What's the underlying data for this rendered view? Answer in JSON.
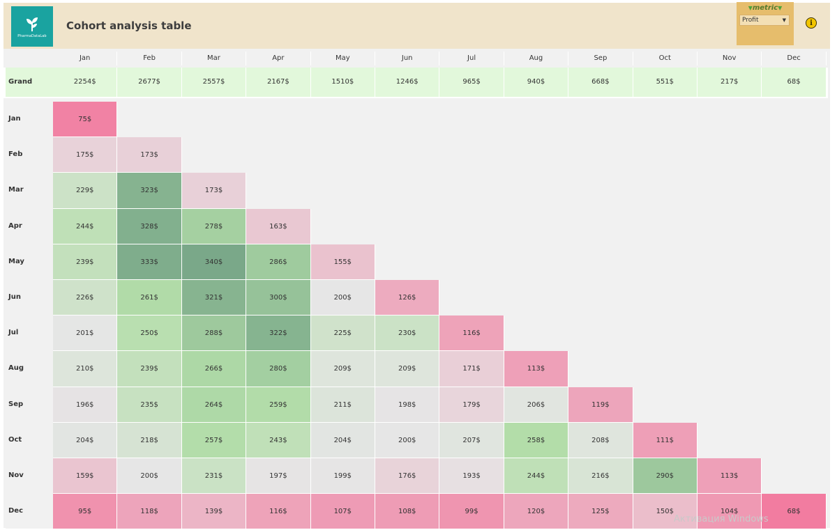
{
  "header": {
    "title": "Cohort analysis table",
    "logo_text": "PharmaDataLab"
  },
  "metric": {
    "label": "metric",
    "selected": "Profit"
  },
  "months": [
    "Jan",
    "Feb",
    "Mar",
    "Apr",
    "May",
    "Jun",
    "Jul",
    "Aug",
    "Sep",
    "Oct",
    "Nov",
    "Dec"
  ],
  "grand_total": {
    "label": "Grand Total",
    "values": [
      "2254$",
      "2677$",
      "2557$",
      "2167$",
      "1510$",
      "1246$",
      "965$",
      "940$",
      "668$",
      "551$",
      "217$",
      "68$"
    ]
  },
  "cohorts": [
    {
      "label": "Jan",
      "values": [
        75
      ]
    },
    {
      "label": "Feb",
      "values": [
        175,
        173
      ]
    },
    {
      "label": "Mar",
      "values": [
        229,
        323,
        173
      ]
    },
    {
      "label": "Apr",
      "values": [
        244,
        328,
        278,
        163
      ]
    },
    {
      "label": "May",
      "values": [
        239,
        333,
        340,
        286,
        155
      ]
    },
    {
      "label": "Jun",
      "values": [
        226,
        261,
        321,
        300,
        200,
        126
      ]
    },
    {
      "label": "Jul",
      "values": [
        201,
        250,
        288,
        322,
        225,
        230,
        116
      ]
    },
    {
      "label": "Aug",
      "values": [
        210,
        239,
        266,
        280,
        209,
        209,
        171,
        113
      ]
    },
    {
      "label": "Sep",
      "values": [
        196,
        235,
        264,
        259,
        211,
        198,
        179,
        206,
        119
      ]
    },
    {
      "label": "Oct",
      "values": [
        204,
        218,
        257,
        243,
        204,
        200,
        207,
        258,
        208,
        111
      ]
    },
    {
      "label": "Nov",
      "values": [
        159,
        200,
        231,
        197,
        199,
        176,
        193,
        244,
        216,
        290,
        113
      ]
    },
    {
      "label": "Dec",
      "values": [
        95,
        118,
        139,
        116,
        107,
        108,
        99,
        120,
        125,
        150,
        104,
        68
      ]
    }
  ],
  "value_suffix": "$",
  "colors": {
    "grand_total_bg": "#e2f8db",
    "low": "#f27ca0",
    "mid": "#e6e6e6",
    "high": "#7aa889",
    "logo_bg": "#1aa3a0",
    "header_bg": "#f0e4cb",
    "metric_bg": "#e6bd6c"
  },
  "watermark": "Активация Windows"
}
